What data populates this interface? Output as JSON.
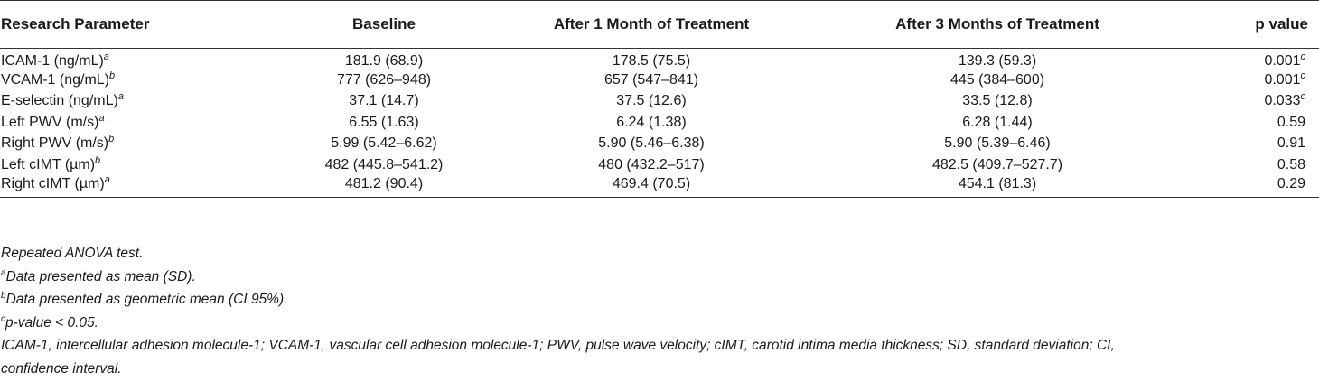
{
  "table": {
    "headers": [
      "Research Parameter",
      "Baseline",
      "After 1 Month of Treatment",
      "After 3 Months of Treatment",
      "p value"
    ],
    "rows": [
      {
        "param": "ICAM-1 (ng/mL)",
        "param_sup": "a",
        "baseline": "181.9 (68.9)",
        "month1": "178.5 (75.5)",
        "month3": "139.3 (59.3)",
        "p": "0.001",
        "p_sup": "c"
      },
      {
        "param": "VCAM-1 (ng/mL)",
        "param_sup": "b",
        "baseline": "777 (626–948)",
        "month1": "657 (547–841)",
        "month3": "445 (384–600)",
        "p": "0.001",
        "p_sup": "c"
      },
      {
        "param": "E-selectin (ng/mL)",
        "param_sup": "a",
        "baseline": "37.1 (14.7)",
        "month1": "37.5 (12.6)",
        "month3": "33.5 (12.8)",
        "p": "0.033",
        "p_sup": "c"
      },
      {
        "param": "Left PWV (m/s)",
        "param_sup": "a",
        "baseline": "6.55 (1.63)",
        "month1": "6.24 (1.38)",
        "month3": "6.28 (1.44)",
        "p": "0.59",
        "p_sup": ""
      },
      {
        "param": "Right PWV (m/s)",
        "param_sup": "b",
        "baseline": "5.99 (5.42–6.62)",
        "month1": "5.90 (5.46–6.38)",
        "month3": "5.90 (5.39–6.46)",
        "p": "0.91",
        "p_sup": ""
      },
      {
        "param": "Left cIMT (µm)",
        "param_sup": "b",
        "baseline": "482 (445.8–541.2)",
        "month1": "480 (432.2–517)",
        "month3": "482.5 (409.7–527.7)",
        "p": "0.58",
        "p_sup": ""
      },
      {
        "param": "Right cIMT (µm)",
        "param_sup": "a",
        "baseline": "481.2 (90.4)",
        "month1": "469.4 (70.5)",
        "month3": "454.1 (81.3)",
        "p": "0.29",
        "p_sup": ""
      }
    ]
  },
  "footnotes": {
    "test": "Repeated ANOVA test.",
    "a_mark": "a",
    "a_text": "Data presented as mean (SD).",
    "b_mark": "b",
    "b_text": "Data presented as geometric mean (CI 95%).",
    "c_mark": "c",
    "c_text": "p-value < 0.05.",
    "abbreviations_line1": "ICAM-1, intercellular adhesion molecule-1; VCAM-1, vascular cell adhesion molecule-1; PWV, pulse wave velocity; cIMT, carotid intima media thickness; SD, standard deviation; CI,",
    "abbreviations_line2": "confidence interval."
  }
}
